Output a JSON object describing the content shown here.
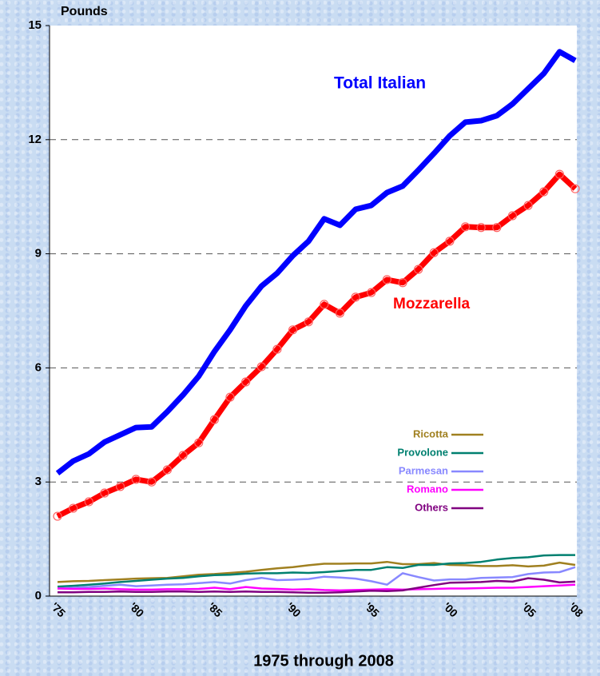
{
  "chart_data": {
    "type": "line",
    "y_label": "Pounds",
    "x_label": "1975 through 2008",
    "categories": [
      "'75",
      null,
      null,
      null,
      null,
      "'80",
      null,
      null,
      null,
      null,
      "'85",
      null,
      null,
      null,
      null,
      "'90",
      null,
      null,
      null,
      null,
      "'95",
      null,
      null,
      null,
      null,
      "'00",
      null,
      null,
      null,
      null,
      "'05",
      null,
      null,
      "'08"
    ],
    "ylim": [
      0,
      15
    ],
    "yticks": [
      0,
      3,
      6,
      9,
      12,
      15
    ],
    "grid": true,
    "series": [
      {
        "name": "Total Italian",
        "color": "#0000ff",
        "values": [
          3.23,
          3.55,
          3.74,
          4.05,
          4.24,
          4.43,
          4.45,
          4.85,
          5.29,
          5.78,
          6.43,
          7.0,
          7.63,
          8.15,
          8.49,
          8.95,
          9.33,
          9.92,
          9.75,
          10.17,
          10.27,
          10.61,
          10.78,
          11.2,
          11.64,
          12.1,
          12.46,
          12.5,
          12.63,
          12.94,
          13.34,
          13.74,
          14.31,
          14.08
        ]
      },
      {
        "name": "Mozzarella",
        "color": "#ff0000",
        "values": [
          2.1,
          2.31,
          2.48,
          2.71,
          2.88,
          3.07,
          3.0,
          3.32,
          3.7,
          4.03,
          4.64,
          5.23,
          5.63,
          6.03,
          6.49,
          7.0,
          7.21,
          7.67,
          7.44,
          7.86,
          7.98,
          8.32,
          8.24,
          8.59,
          9.03,
          9.33,
          9.71,
          9.69,
          9.69,
          10.0,
          10.27,
          10.63,
          11.09,
          10.71
        ]
      },
      {
        "name": "Ricotta",
        "color": "#a08020",
        "values": [
          0.37,
          0.39,
          0.4,
          0.42,
          0.44,
          0.46,
          0.47,
          0.48,
          0.52,
          0.56,
          0.58,
          0.61,
          0.64,
          0.69,
          0.73,
          0.76,
          0.81,
          0.85,
          0.85,
          0.86,
          0.86,
          0.9,
          0.84,
          0.84,
          0.87,
          0.82,
          0.81,
          0.79,
          0.79,
          0.81,
          0.78,
          0.8,
          0.88,
          0.82
        ]
      },
      {
        "name": "Provolone",
        "color": "#008070",
        "values": [
          0.25,
          0.27,
          0.3,
          0.33,
          0.37,
          0.4,
          0.43,
          0.46,
          0.48,
          0.52,
          0.55,
          0.56,
          0.59,
          0.6,
          0.6,
          0.62,
          0.61,
          0.63,
          0.66,
          0.69,
          0.69,
          0.76,
          0.74,
          0.82,
          0.82,
          0.86,
          0.87,
          0.9,
          0.96,
          1.0,
          1.02,
          1.07,
          1.08,
          1.08
        ]
      },
      {
        "name": "Parmesan",
        "color": "#8888ff",
        "values": [
          0.2,
          0.22,
          0.24,
          0.27,
          0.3,
          0.26,
          0.28,
          0.3,
          0.31,
          0.34,
          0.37,
          0.33,
          0.42,
          0.48,
          0.42,
          0.43,
          0.45,
          0.51,
          0.49,
          0.46,
          0.39,
          0.3,
          0.6,
          0.5,
          0.41,
          0.44,
          0.44,
          0.48,
          0.49,
          0.5,
          0.58,
          0.62,
          0.63,
          0.76
        ]
      },
      {
        "name": "Romano",
        "color": "#ff00ff",
        "values": [
          0.2,
          0.19,
          0.19,
          0.2,
          0.18,
          0.17,
          0.17,
          0.18,
          0.18,
          0.19,
          0.22,
          0.18,
          0.24,
          0.2,
          0.19,
          0.17,
          0.18,
          0.16,
          0.15,
          0.16,
          0.17,
          0.18,
          0.17,
          0.18,
          0.19,
          0.2,
          0.2,
          0.21,
          0.22,
          0.22,
          0.24,
          0.26,
          0.28,
          0.3
        ]
      },
      {
        "name": "Others",
        "color": "#800080",
        "values": [
          0.1,
          0.1,
          0.11,
          0.11,
          0.12,
          0.11,
          0.11,
          0.12,
          0.12,
          0.11,
          0.12,
          0.11,
          0.12,
          0.11,
          0.11,
          0.1,
          0.09,
          0.09,
          0.1,
          0.12,
          0.14,
          0.13,
          0.15,
          0.22,
          0.29,
          0.35,
          0.36,
          0.37,
          0.4,
          0.38,
          0.47,
          0.43,
          0.36,
          0.38
        ]
      }
    ]
  }
}
